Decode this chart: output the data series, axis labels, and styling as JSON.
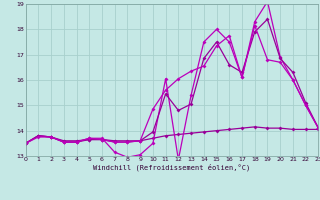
{
  "xlabel": "Windchill (Refroidissement éolien,°C)",
  "bg_color": "#c5e8e5",
  "grid_color": "#a8d0cc",
  "line_color1": "#990099",
  "line_color2": "#bb00bb",
  "xmin": 0,
  "xmax": 23,
  "ymin": 13,
  "ymax": 19,
  "s1_x": [
    0,
    1,
    2,
    3,
    4,
    5,
    6,
    7,
    8,
    9,
    10,
    11,
    12,
    13,
    14,
    15,
    16,
    17,
    18,
    19,
    20,
    21,
    22,
    23
  ],
  "s1_y": [
    13.5,
    13.8,
    13.75,
    13.6,
    13.6,
    13.65,
    13.65,
    13.6,
    13.6,
    13.6,
    13.7,
    13.8,
    13.85,
    13.9,
    13.95,
    14.0,
    14.05,
    14.1,
    14.15,
    14.1,
    14.1,
    14.05,
    14.05,
    14.05
  ],
  "s2_x": [
    0,
    1,
    2,
    3,
    4,
    5,
    6,
    7,
    8,
    9,
    10,
    11,
    12,
    13,
    14,
    15,
    16,
    17,
    18,
    19,
    20,
    21,
    22,
    23
  ],
  "s2_y": [
    13.5,
    13.8,
    13.75,
    13.55,
    13.55,
    13.7,
    13.7,
    13.15,
    12.95,
    13.05,
    13.5,
    16.05,
    12.85,
    15.4,
    17.5,
    18.0,
    17.5,
    16.1,
    18.3,
    19.1,
    16.9,
    16.0,
    15.0,
    14.1
  ],
  "s3_x": [
    0,
    1,
    2,
    3,
    4,
    5,
    6,
    7,
    8,
    9,
    10,
    11,
    12,
    13,
    14,
    15,
    16,
    17,
    18,
    19,
    20,
    21,
    22,
    23
  ],
  "s3_y": [
    13.5,
    13.8,
    13.75,
    13.55,
    13.55,
    13.65,
    13.65,
    13.55,
    13.55,
    13.6,
    13.95,
    15.45,
    14.8,
    15.05,
    16.85,
    17.5,
    16.6,
    16.3,
    17.9,
    18.4,
    16.85,
    16.3,
    15.1,
    14.1
  ],
  "s4_x": [
    0,
    1,
    2,
    3,
    4,
    5,
    6,
    7,
    8,
    9,
    10,
    11,
    12,
    13,
    14,
    15,
    16,
    17,
    18,
    19,
    20,
    21,
    22,
    23
  ],
  "s4_y": [
    13.5,
    13.75,
    13.75,
    13.55,
    13.55,
    13.7,
    13.65,
    13.55,
    13.55,
    13.6,
    14.85,
    15.6,
    16.05,
    16.35,
    16.55,
    17.35,
    17.75,
    16.1,
    18.15,
    16.8,
    16.7,
    16.0,
    15.0,
    14.1
  ]
}
